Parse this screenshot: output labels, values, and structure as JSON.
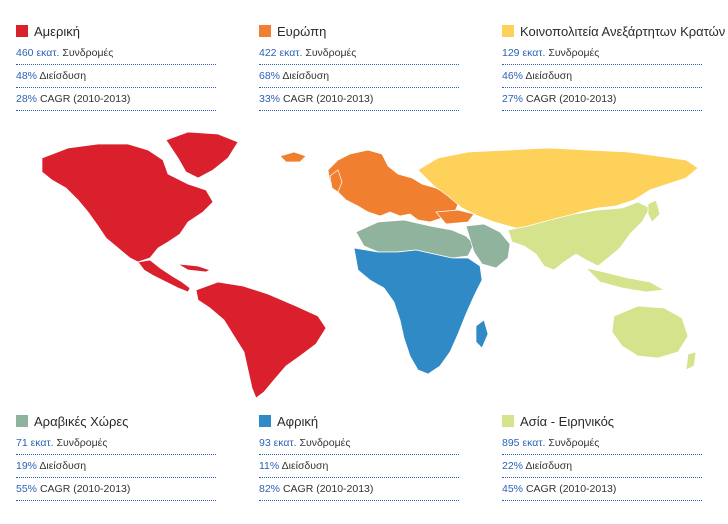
{
  "colors": {
    "america": "#d9202c",
    "europe": "#f08030",
    "cis": "#fdd15a",
    "arab": "#8fb39c",
    "africa": "#2f8ac6",
    "asia": "#d4e38c",
    "accent_text": "#2b62b8"
  },
  "regions": {
    "america": {
      "name": "Αμερική",
      "subs_value": "460",
      "subs_unit": "εκατ.",
      "subs_label": "Συνδρομές",
      "pen_value": "48%",
      "pen_label": "Διείσδυση",
      "cagr_value": "28%",
      "cagr_label": "CAGR (2010-2013)"
    },
    "europe": {
      "name": "Ευρώπη",
      "subs_value": "422",
      "subs_unit": "εκατ.",
      "subs_label": "Συνδρομές",
      "pen_value": "68%",
      "pen_label": "Διείσδυση",
      "cagr_value": "33%",
      "cagr_label": "CAGR (2010-2013)"
    },
    "cis": {
      "name": "Κοινοπολιτεία Ανεξάρτητων Κρατών",
      "subs_value": "129",
      "subs_unit": "εκατ.",
      "subs_label": "Συνδρομές",
      "pen_value": "46%",
      "pen_label": "Διείσδυση",
      "cagr_value": "27%",
      "cagr_label": "CAGR (2010-2013)"
    },
    "arab": {
      "name": "Αραβικές Χώρες",
      "subs_value": "71",
      "subs_unit": "εκατ.",
      "subs_label": "Συνδρομές",
      "pen_value": "19%",
      "pen_label": "Διείσδυση",
      "cagr_value": "55%",
      "cagr_label": "CAGR (2010-2013)"
    },
    "africa": {
      "name": "Αφρική",
      "subs_value": "93",
      "subs_unit": "εκατ.",
      "subs_label": "Συνδρομές",
      "pen_value": "11%",
      "pen_label": "Διείσδυση",
      "cagr_value": "82%",
      "cagr_label": "CAGR (2010-2013)"
    },
    "asia": {
      "name": "Ασία - Ειρηνικός",
      "subs_value": "895",
      "subs_unit": "εκατ.",
      "subs_label": "Συνδρομές",
      "pen_value": "22%",
      "pen_label": "Διείσδυση",
      "cagr_value": "45%",
      "cagr_label": "CAGR (2010-2013)"
    }
  }
}
